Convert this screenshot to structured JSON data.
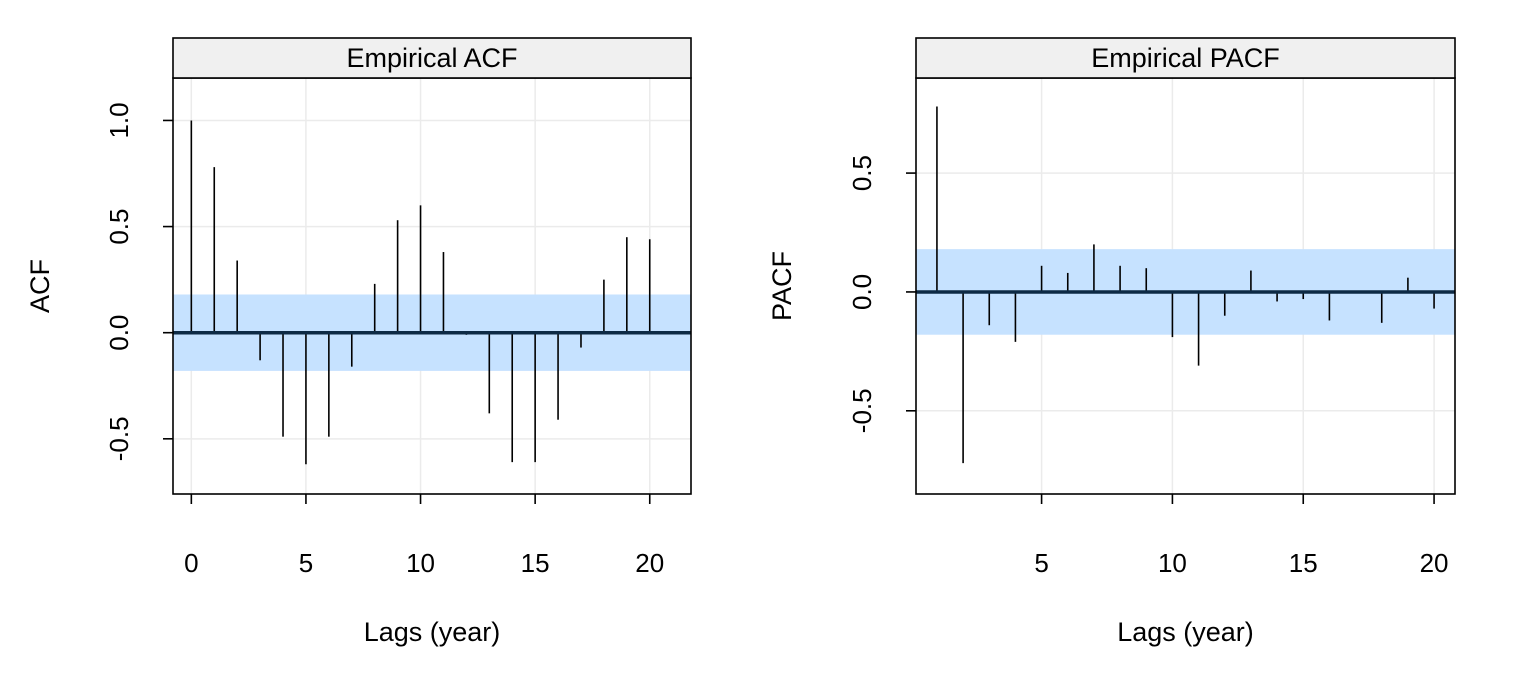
{
  "chart_data": [
    {
      "type": "bar",
      "title": "Empirical ACF",
      "xlabel": "Lags (year)",
      "ylabel": "ACF",
      "xlim": [
        -0.8,
        21.8
      ],
      "ylim": [
        -0.76,
        1.2
      ],
      "xticks": [
        0,
        5,
        10,
        15,
        20
      ],
      "yticks": [
        -0.5,
        0.0,
        0.5,
        1.0
      ],
      "ytick_labels": [
        "-0.5",
        "0.0",
        "0.5",
        "1.0"
      ],
      "grid": true,
      "band": [
        -0.18,
        0.18
      ],
      "band_color": "#c6e2ff",
      "x": [
        0,
        1,
        2,
        3,
        4,
        5,
        6,
        7,
        8,
        9,
        10,
        11,
        12,
        13,
        14,
        15,
        16,
        17,
        18,
        19,
        20
      ],
      "values": [
        1.0,
        0.78,
        0.34,
        -0.13,
        -0.49,
        -0.62,
        -0.49,
        -0.16,
        0.23,
        0.53,
        0.6,
        0.38,
        -0.01,
        -0.38,
        -0.61,
        -0.61,
        -0.41,
        -0.07,
        0.25,
        0.45,
        0.44
      ]
    },
    {
      "type": "bar",
      "title": "Empirical PACF",
      "xlabel": "Lags (year)",
      "ylabel": "PACF",
      "xlim": [
        0.2,
        20.8
      ],
      "ylim": [
        -0.85,
        0.9
      ],
      "xticks": [
        5,
        10,
        15,
        20
      ],
      "yticks": [
        -0.5,
        0.0,
        0.5
      ],
      "ytick_labels": [
        "-0.5",
        "0.0",
        "0.5"
      ],
      "grid": true,
      "band": [
        -0.18,
        0.18
      ],
      "band_color": "#c6e2ff",
      "x": [
        1,
        2,
        3,
        4,
        5,
        6,
        7,
        8,
        9,
        10,
        11,
        12,
        13,
        14,
        15,
        16,
        17,
        18,
        19,
        20
      ],
      "values": [
        0.78,
        -0.72,
        -0.14,
        -0.21,
        0.11,
        0.08,
        0.2,
        0.11,
        0.1,
        -0.19,
        -0.31,
        -0.1,
        0.09,
        -0.04,
        -0.03,
        -0.12,
        0.0,
        -0.13,
        0.06,
        -0.07
      ]
    }
  ]
}
